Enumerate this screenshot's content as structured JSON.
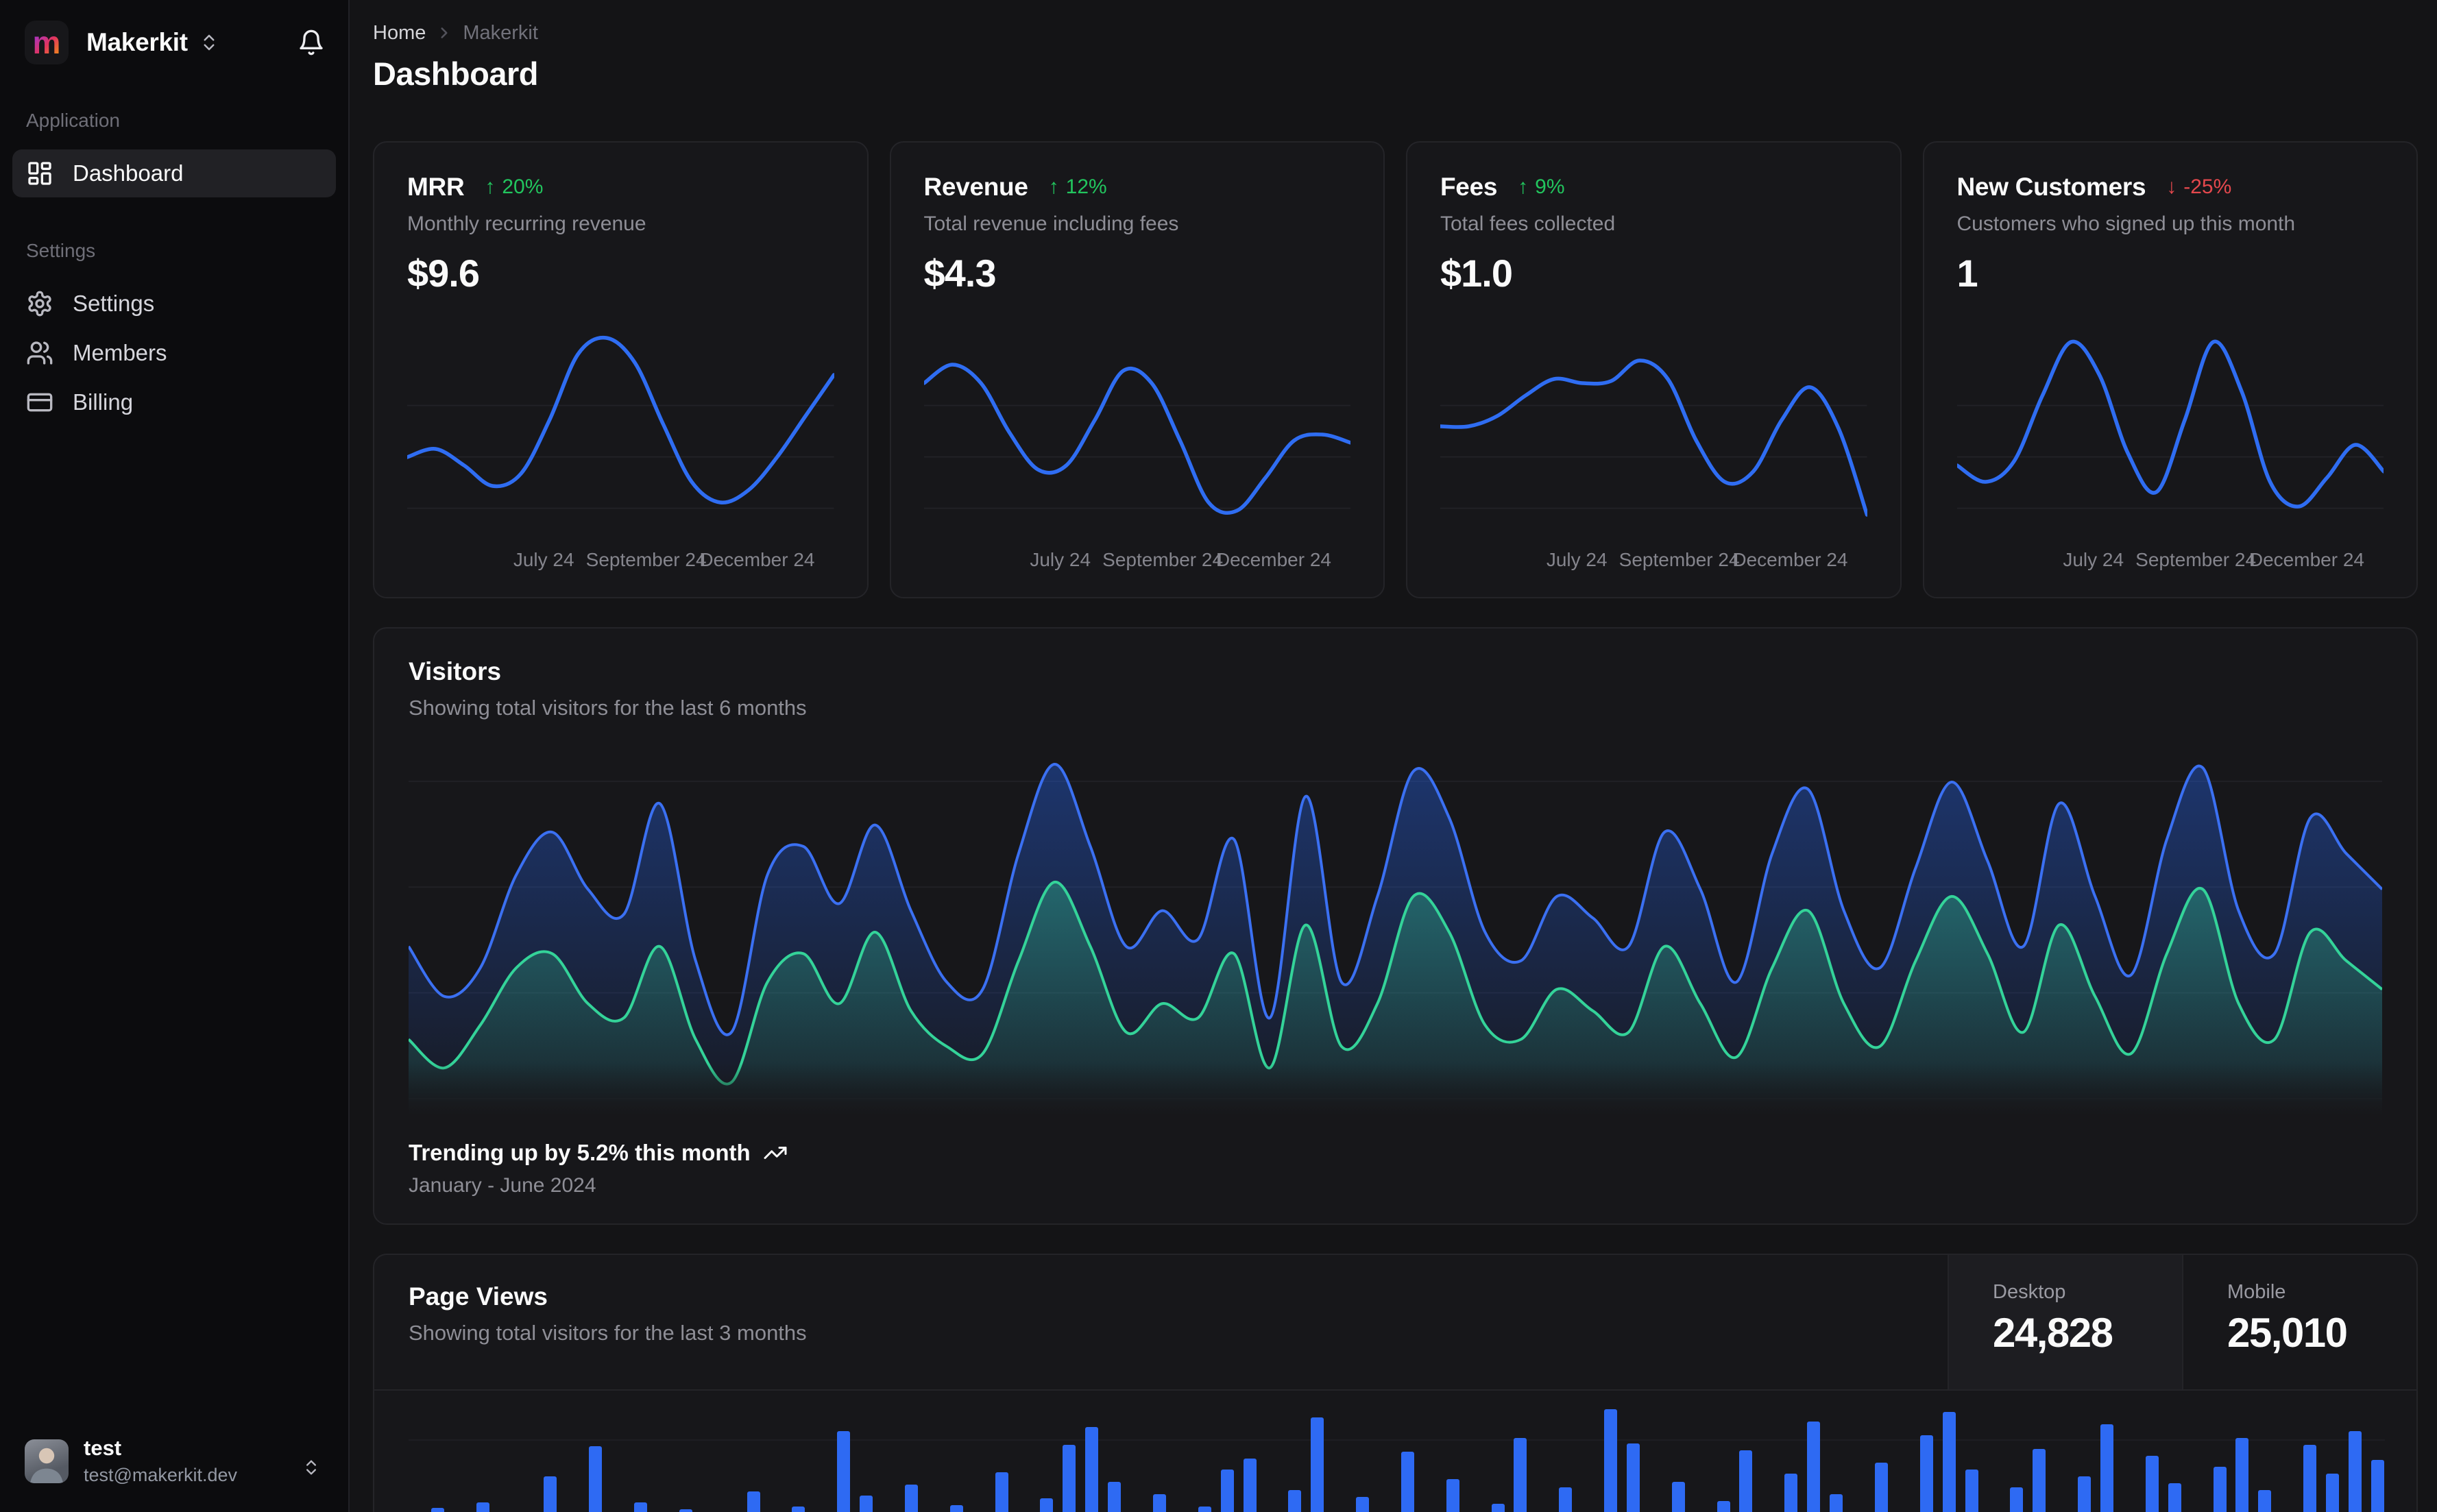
{
  "colors": {
    "accent_blue": "#2f6df2",
    "series_green": "#34d399",
    "positive_green": "#22c55e",
    "negative_red": "#e5484d"
  },
  "sidebar": {
    "workspace": {
      "name": "Makerkit",
      "logo_letter": "m"
    },
    "sections": [
      {
        "label": "Application",
        "items": [
          {
            "label": "Dashboard",
            "icon": "layout-dashboard",
            "active": true
          }
        ]
      },
      {
        "label": "Settings",
        "items": [
          {
            "label": "Settings",
            "icon": "gear"
          },
          {
            "label": "Members",
            "icon": "users"
          },
          {
            "label": "Billing",
            "icon": "credit-card"
          }
        ]
      }
    ],
    "user": {
      "name": "test",
      "email": "test@makerkit.dev"
    }
  },
  "header": {
    "breadcrumb": {
      "home": "Home",
      "current": "Makerkit"
    },
    "title": "Dashboard"
  },
  "stat_cards": [
    {
      "title": "MRR",
      "delta_arrow": "↑",
      "delta": "20%",
      "delta_color": "#22c55e",
      "description": "Monthly recurring revenue",
      "value": "$9.6"
    },
    {
      "title": "Revenue",
      "delta_arrow": "↑",
      "delta": "12%",
      "delta_color": "#22c55e",
      "description": "Total revenue including fees",
      "value": "$4.3"
    },
    {
      "title": "Fees",
      "delta_arrow": "↑",
      "delta": "9%",
      "delta_color": "#22c55e",
      "description": "Total fees collected",
      "value": "$1.0"
    },
    {
      "title": "New Customers",
      "delta_arrow": "↓",
      "delta": "-25%",
      "delta_color": "#e5484d",
      "description": "Customers who signed up this month",
      "value": "1"
    }
  ],
  "visitors": {
    "title": "Visitors",
    "subtitle": "Showing total visitors for the last 6 months",
    "trend_text": "Trending up by 5.2% this month",
    "period": "January - June 2024"
  },
  "page_views": {
    "title": "Page Views",
    "subtitle": "Showing total visitors for the last 3 months",
    "stats": [
      {
        "label": "Desktop",
        "value": "24,828",
        "active": true
      },
      {
        "label": "Mobile",
        "value": "25,010"
      }
    ]
  },
  "chart_data": [
    {
      "name": "mrr-spark",
      "type": "line",
      "color": "#2f6df2",
      "x_ticks": [
        "July 24",
        "September 24",
        "December 24"
      ],
      "values": [
        34,
        38,
        30,
        20,
        26,
        52,
        84,
        92,
        80,
        50,
        22,
        12,
        18,
        34,
        54,
        74
      ]
    },
    {
      "name": "revenue-spark",
      "type": "line",
      "color": "#2f6df2",
      "x_ticks": [
        "July 24",
        "September 24",
        "December 24"
      ],
      "values": [
        70,
        79,
        70,
        46,
        28,
        30,
        52,
        76,
        70,
        42,
        12,
        8,
        24,
        42,
        45,
        41
      ]
    },
    {
      "name": "fees-spark",
      "type": "line",
      "color": "#2f6df2",
      "x_ticks": [
        "July 24",
        "September 24",
        "December 24"
      ],
      "values": [
        49,
        49,
        54,
        64,
        72,
        70,
        71,
        81,
        72,
        42,
        22,
        27,
        52,
        68,
        48,
        6
      ]
    },
    {
      "name": "new-customers-spark",
      "type": "line",
      "color": "#2f6df2",
      "x_ticks": [
        "July 24",
        "September 24",
        "December 24"
      ],
      "values": [
        30,
        22,
        32,
        64,
        90,
        74,
        36,
        17,
        52,
        90,
        66,
        22,
        10,
        24,
        40,
        27
      ]
    },
    {
      "name": "visitors-area",
      "type": "area",
      "title": "Visitors",
      "x_range": "January - June 2024",
      "series": [
        {
          "name": "series-blue",
          "color": "#3b70f2",
          "gradient": "g-blue",
          "values": [
            46,
            32,
            40,
            66,
            78,
            62,
            55,
            86,
            42,
            22,
            66,
            74,
            58,
            80,
            56,
            36,
            34,
            72,
            97,
            74,
            46,
            56,
            48,
            76,
            26,
            88,
            36,
            60,
            95,
            82,
            50,
            42,
            60,
            54,
            46,
            78,
            62,
            36,
            72,
            90,
            56,
            40,
            68,
            92,
            70,
            46,
            86,
            60,
            38,
            76,
            96,
            56,
            44,
            82,
            72,
            62
          ]
        },
        {
          "name": "series-green",
          "color": "#34d399",
          "gradient": "g-green",
          "values": [
            20,
            12,
            24,
            40,
            44,
            30,
            26,
            46,
            20,
            8,
            36,
            44,
            30,
            50,
            28,
            18,
            16,
            42,
            64,
            46,
            22,
            30,
            26,
            44,
            12,
            52,
            18,
            30,
            60,
            50,
            24,
            20,
            34,
            28,
            22,
            46,
            30,
            15,
            40,
            56,
            30,
            18,
            42,
            60,
            44,
            22,
            52,
            32,
            16,
            44,
            62,
            30,
            20,
            50,
            42,
            34
          ]
        }
      ]
    },
    {
      "name": "page-views-bars",
      "type": "bar",
      "color": "#2e6af3",
      "values": [
        0,
        6,
        0,
        14,
        0,
        0,
        52,
        0,
        96,
        0,
        14,
        0,
        4,
        0,
        0,
        30,
        0,
        8,
        0,
        118,
        24,
        0,
        40,
        0,
        10,
        0,
        58,
        0,
        20,
        98,
        124,
        44,
        0,
        26,
        0,
        8,
        62,
        78,
        0,
        32,
        138,
        0,
        22,
        0,
        88,
        0,
        48,
        0,
        12,
        108,
        0,
        36,
        0,
        150,
        100,
        0,
        44,
        0,
        16,
        90,
        0,
        56,
        132,
        26,
        0,
        72,
        0,
        112,
        146,
        62,
        0,
        36,
        92,
        0,
        52,
        128,
        0,
        82,
        42,
        0,
        66,
        108,
        32,
        0,
        98,
        56,
        118,
        76
      ]
    }
  ]
}
